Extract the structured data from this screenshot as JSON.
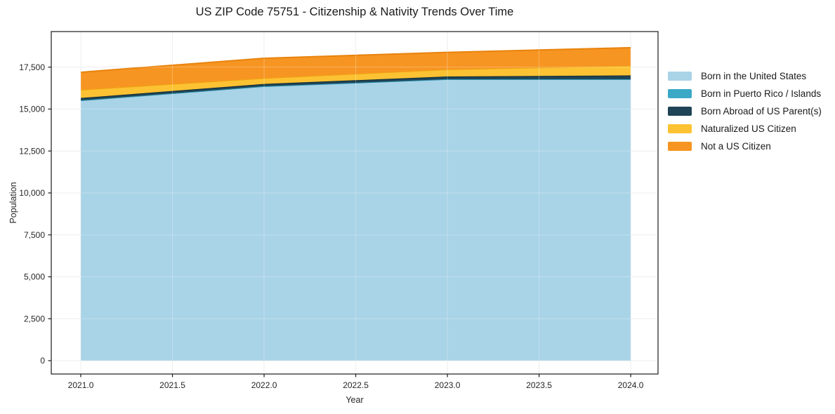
{
  "figure": {
    "title": "US ZIP Code 75751 - Citizenship & Nativity Trends Over Time",
    "background_color": "#ffffff"
  },
  "chart_data": {
    "type": "area",
    "stacked": true,
    "title": "US ZIP Code 75751 - Citizenship & Nativity Trends Over Time",
    "xlabel": "Year",
    "ylabel": "Population",
    "x": [
      2021,
      2022,
      2023,
      2024
    ],
    "series": [
      {
        "name": "Born in the United States",
        "color": "#a9d3e7",
        "line_color": "#7db9d6",
        "values": [
          15520,
          16360,
          16780,
          16780
        ]
      },
      {
        "name": "Born in Puerto Rico / Islands",
        "color": "#3ba8c6",
        "line_color": "#2f93ae",
        "values": [
          0,
          0,
          0,
          0
        ]
      },
      {
        "name": "Born Abroad of US Parent(s)",
        "color": "#1f4456",
        "line_color": "#132d3a",
        "values": [
          140,
          140,
          165,
          230
        ]
      },
      {
        "name": "Naturalized US Citizen",
        "color": "#fcc233",
        "line_color": "#efa313",
        "values": [
          490,
          345,
          420,
          575
        ]
      },
      {
        "name": "Not a US Citizen",
        "color": "#f79522",
        "line_color": "#e8830d",
        "values": [
          1045,
          1185,
          1015,
          1075
        ]
      }
    ],
    "totals": [
      17195,
      18030,
      18380,
      18660
    ],
    "xticks": [
      2021.0,
      2021.5,
      2022.0,
      2022.5,
      2023.0,
      2023.5,
      2024.0
    ],
    "xtick_labels": [
      "2021.0",
      "2021.5",
      "2022.0",
      "2022.5",
      "2023.0",
      "2023.5",
      "2024.0"
    ],
    "yticks": [
      0,
      2500,
      5000,
      7500,
      10000,
      12500,
      15000,
      17500
    ],
    "ytick_labels": [
      "0",
      "2,500",
      "5,000",
      "7,500",
      "10,000",
      "12,500",
      "15,000",
      "17,500"
    ],
    "xlim": [
      2020.839,
      2024.149
    ],
    "ylim": [
      -795,
      19620
    ],
    "grid": true,
    "grid_color": "#e8e8e8",
    "frame_color": "#1a1a1a",
    "tick_text_color": "#262626",
    "legend_position": "right-outside"
  }
}
